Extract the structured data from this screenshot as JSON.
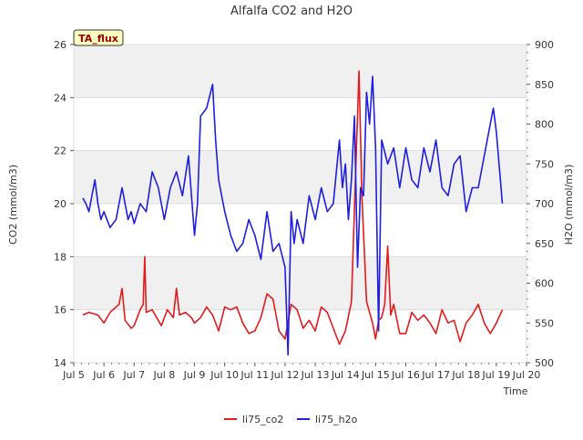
{
  "chart_data": {
    "type": "line",
    "title": "Alfalfa CO2 and H2O",
    "badge": "TA_flux",
    "xlabel": "Time",
    "ylabel_left": "CO2 (mmol/m3)",
    "ylabel_right": "H2O (mmol/m3)",
    "x_ticks": [
      "Jul 5",
      "Jul 6",
      "Jul 7",
      "Jul 8",
      "Jul 9",
      "Jul 10",
      "Jul 11",
      "Jul 12",
      "Jul 13",
      "Jul 14",
      "Jul 15",
      "Jul 16",
      "Jul 17",
      "Jul 18",
      "Jul 19",
      "Jul 20"
    ],
    "xlim_days": [
      5,
      20
    ],
    "ylim_left": [
      14,
      26
    ],
    "yticks_left": [
      14,
      16,
      18,
      20,
      22,
      24,
      26
    ],
    "ylim_right": [
      500,
      900
    ],
    "yticks_right": [
      500,
      550,
      600,
      650,
      700,
      750,
      800,
      850,
      900
    ],
    "grid": "horizontal bands",
    "legend_position": "bottom-center",
    "colors": {
      "li75_co2": "#e41a1c",
      "li75_h2o": "#1f1fe0",
      "band": "#f0f0f0",
      "badge_bg": "#ffffc0",
      "badge_text": "#990000"
    },
    "series": [
      {
        "name": "li75_co2",
        "axis": "left",
        "x_days": [
          5.3,
          5.5,
          5.8,
          6.0,
          6.2,
          6.5,
          6.6,
          6.7,
          6.9,
          7.0,
          7.2,
          7.3,
          7.35,
          7.4,
          7.6,
          7.9,
          8.1,
          8.3,
          8.4,
          8.5,
          8.7,
          8.9,
          9.0,
          9.2,
          9.4,
          9.6,
          9.8,
          10.0,
          10.2,
          10.4,
          10.6,
          10.8,
          11.0,
          11.2,
          11.4,
          11.6,
          11.8,
          12.0,
          12.2,
          12.4,
          12.6,
          12.8,
          13.0,
          13.2,
          13.4,
          13.6,
          13.8,
          14.0,
          14.2,
          14.3,
          14.45,
          14.55,
          14.7,
          14.9,
          15.0,
          15.1,
          15.2,
          15.3,
          15.4,
          15.5,
          15.6,
          15.8,
          16.0,
          16.2,
          16.4,
          16.6,
          16.8,
          17.0,
          17.2,
          17.4,
          17.6,
          17.8,
          18.0,
          18.2,
          18.4,
          18.6,
          18.8,
          19.0,
          19.2
        ],
        "values": [
          15.8,
          15.9,
          15.8,
          15.5,
          15.9,
          16.2,
          16.8,
          15.6,
          15.3,
          15.4,
          16.0,
          16.2,
          18.0,
          15.9,
          16.0,
          15.4,
          16.0,
          15.7,
          16.8,
          15.8,
          15.9,
          15.7,
          15.5,
          15.7,
          16.1,
          15.8,
          15.2,
          16.1,
          16.0,
          16.1,
          15.5,
          15.1,
          15.2,
          15.7,
          16.6,
          16.4,
          15.2,
          14.9,
          16.2,
          16.0,
          15.3,
          15.6,
          15.2,
          16.1,
          15.9,
          15.3,
          14.7,
          15.2,
          16.3,
          19.8,
          25.0,
          20.2,
          16.3,
          15.5,
          14.9,
          15.6,
          15.7,
          16.2,
          18.4,
          15.8,
          16.2,
          15.1,
          15.1,
          15.9,
          15.6,
          15.8,
          15.5,
          15.1,
          16.0,
          15.5,
          15.6,
          14.8,
          15.5,
          15.8,
          16.2,
          15.5,
          15.1,
          15.5,
          16.0
        ]
      },
      {
        "name": "li75_h2o",
        "axis": "right",
        "x_days": [
          5.3,
          5.4,
          5.5,
          5.6,
          5.7,
          5.8,
          5.9,
          6.0,
          6.2,
          6.4,
          6.6,
          6.8,
          6.9,
          7.0,
          7.2,
          7.4,
          7.6,
          7.8,
          8.0,
          8.2,
          8.4,
          8.6,
          8.8,
          9.0,
          9.1,
          9.2,
          9.4,
          9.6,
          9.7,
          9.8,
          10.0,
          10.2,
          10.4,
          10.6,
          10.8,
          11.0,
          11.2,
          11.4,
          11.6,
          11.8,
          12.0,
          12.1,
          12.2,
          12.3,
          12.4,
          12.6,
          12.8,
          13.0,
          13.2,
          13.4,
          13.6,
          13.8,
          13.9,
          14.0,
          14.1,
          14.2,
          14.3,
          14.4,
          14.5,
          14.6,
          14.7,
          14.8,
          14.9,
          15.0,
          15.1,
          15.2,
          15.4,
          15.6,
          15.8,
          16.0,
          16.2,
          16.4,
          16.6,
          16.8,
          17.0,
          17.2,
          17.4,
          17.6,
          17.8,
          18.0,
          18.2,
          18.4,
          18.6,
          18.8,
          18.9,
          19.0,
          19.2
        ],
        "values": [
          707,
          700,
          690,
          710,
          730,
          700,
          680,
          690,
          670,
          680,
          720,
          680,
          690,
          675,
          700,
          690,
          740,
          720,
          680,
          720,
          740,
          710,
          760,
          660,
          700,
          810,
          820,
          850,
          780,
          730,
          690,
          660,
          640,
          650,
          680,
          660,
          630,
          690,
          640,
          650,
          620,
          510,
          690,
          650,
          680,
          650,
          710,
          680,
          720,
          690,
          700,
          780,
          720,
          750,
          680,
          730,
          810,
          620,
          720,
          710,
          840,
          800,
          860,
          770,
          540,
          780,
          750,
          770,
          720,
          770,
          730,
          720,
          770,
          740,
          780,
          720,
          710,
          750,
          760,
          690,
          720,
          720,
          760,
          800,
          820,
          790,
          700
        ]
      }
    ]
  }
}
